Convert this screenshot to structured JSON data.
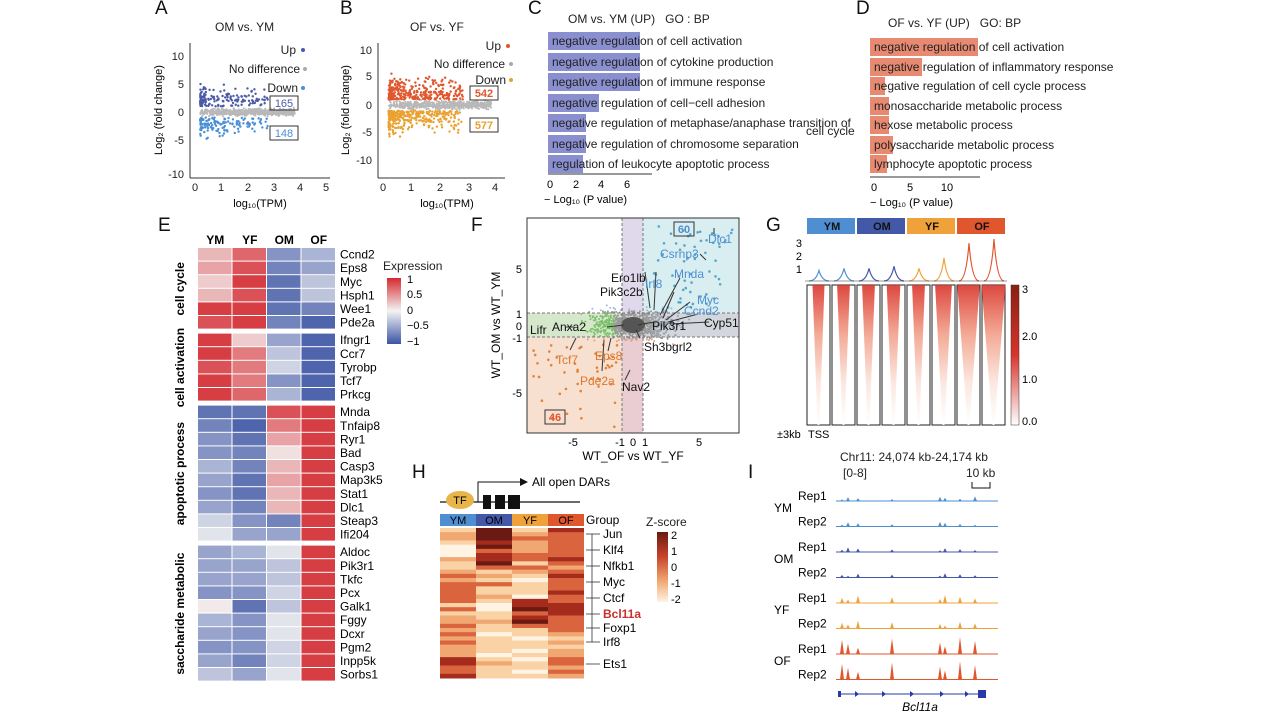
{
  "panel_letters": {
    "A": "A",
    "B": "B",
    "C": "C",
    "D": "D",
    "E": "E",
    "F": "F",
    "G": "G",
    "H": "H",
    "I": "I"
  },
  "panelA": {
    "title": "OM vs. YM",
    "ylabel": "Log₂ (fold change)",
    "xlabel": "log₁₀(TPM)",
    "legend": [
      "Up",
      "No difference",
      "Down"
    ],
    "up_count": "165",
    "down_count": "148",
    "yticks": [
      "10",
      "5",
      "0",
      "-5",
      "-10"
    ],
    "xticks": [
      "0",
      "1",
      "2",
      "3",
      "4",
      "5"
    ],
    "colors": {
      "up": "#4a5aa8",
      "down": "#4b8fd6",
      "none": "#b8b8b8"
    }
  },
  "panelB": {
    "title": "OF vs. YF",
    "ylabel": "Log₂ (fold change)",
    "xlabel": "log₁₀(TPM)",
    "legend": [
      "Up",
      "No difference",
      "Down"
    ],
    "up_count": "542",
    "down_count": "577",
    "yticks": [
      "10",
      "5",
      "0",
      "-5",
      "-10"
    ],
    "xticks": [
      "0",
      "1",
      "2",
      "3",
      "4"
    ],
    "colors": {
      "up": "#e0572e",
      "down": "#eaa130",
      "none": "#b8b8b8"
    }
  },
  "panelC": {
    "title": "OM vs. YM (UP)   GO : BP",
    "xlabel": "− Log₁₀ (P value)",
    "xticks": [
      "0",
      "2",
      "4",
      "6"
    ],
    "bar_color": "#8a8fd0",
    "terms": [
      {
        "label": "negative regulation of cell activation",
        "value": 6.8
      },
      {
        "label": "negative regulation of cytokine production",
        "value": 6.8
      },
      {
        "label": "negative regulation of immune response",
        "value": 6.8
      },
      {
        "label": "negative regulation of cell−cell adhesion",
        "value": 3.8
      },
      {
        "label": "negative regulation of metaphase/anaphase transition of",
        "label2": "cell cycle",
        "value": 2.8
      },
      {
        "label": "negative regulation of chromosome separation",
        "value": 2.8
      },
      {
        "label": "regulation of leukocyte apoptotic process",
        "value": 2.6
      }
    ]
  },
  "panelD": {
    "title": "OF vs. YF (UP)   GO: BP",
    "xlabel": "− Log₁₀ (P value)",
    "xticks": [
      "0",
      "5",
      "10"
    ],
    "bar_color": "#e88a72",
    "terms": [
      {
        "label": "negative regulation of cell activation",
        "value": 12.5
      },
      {
        "label": "negative regulation of inflammatory response",
        "value": 6.0
      },
      {
        "label": "negative regulation of cell cycle process",
        "value": 1.8
      },
      {
        "label": "monosaccharide metabolic process",
        "value": 2.2
      },
      {
        "label": "hexose metabolic process",
        "value": 2.2
      },
      {
        "label": "polysaccharide metabolic process",
        "value": 2.7
      },
      {
        "label": "lymphocyte apoptotic process",
        "value": 2.0
      }
    ]
  },
  "panelE": {
    "columns": [
      "YM",
      "YF",
      "OM",
      "OF"
    ],
    "legend_title": "Expression",
    "legend_ticks": [
      "1",
      "0.5",
      "0",
      "−0.5",
      "−1"
    ],
    "groups": [
      {
        "name": "cell cycle",
        "genes": [
          "Ccnd2",
          "Eps8",
          "Myc",
          "Hsph1",
          "Wee1",
          "Pde2a"
        ],
        "values": [
          [
            0.3,
            0.7,
            -0.6,
            -0.4
          ],
          [
            0.4,
            0.8,
            -0.7,
            -0.5
          ],
          [
            0.2,
            0.9,
            -0.8,
            -0.3
          ],
          [
            0.3,
            0.8,
            -0.8,
            -0.3
          ],
          [
            0.9,
            0.9,
            -0.8,
            -0.7
          ],
          [
            0.8,
            0.9,
            -0.7,
            -0.9
          ]
        ]
      },
      {
        "name": "cell activation",
        "genes": [
          "Ifngr1",
          "Ccr7",
          "Tyrobp",
          "Tcf7",
          "Prkcg"
        ],
        "values": [
          [
            0.9,
            0.2,
            -0.5,
            -0.9
          ],
          [
            0.9,
            0.6,
            -0.3,
            -0.9
          ],
          [
            0.8,
            0.6,
            -0.2,
            -0.9
          ],
          [
            0.9,
            0.6,
            -0.6,
            -0.9
          ],
          [
            0.9,
            0.7,
            -0.4,
            -0.9
          ]
        ]
      },
      {
        "name": "apoptotic process",
        "genes": [
          "Mnda",
          "Tnfaip8",
          "Ryr1",
          "Bad",
          "Casp3",
          "Map3k5",
          "Stat1",
          "Dlc1",
          "Steap3",
          "Ifi204"
        ],
        "values": [
          [
            -0.8,
            -0.8,
            0.8,
            0.9
          ],
          [
            -0.7,
            -0.9,
            0.6,
            0.9
          ],
          [
            -0.6,
            -0.8,
            0.4,
            0.9
          ],
          [
            -0.6,
            -0.7,
            0.1,
            0.9
          ],
          [
            -0.4,
            -0.7,
            0.3,
            0.9
          ],
          [
            -0.5,
            -0.8,
            0.4,
            0.9
          ],
          [
            -0.6,
            -0.8,
            0.3,
            0.9
          ],
          [
            -0.5,
            -0.7,
            0.3,
            0.9
          ],
          [
            -0.2,
            -0.6,
            -0.7,
            0.9
          ],
          [
            -0.1,
            -0.5,
            -0.5,
            0.9
          ]
        ]
      },
      {
        "name": "saccharide metabolic",
        "genes": [
          "Aldoc",
          "Pik3r1",
          "Tkfc",
          "Pcx",
          "Galk1",
          "Fggy",
          "Dcxr",
          "Pgm2",
          "Inpp5k",
          "Sorbs1"
        ],
        "values": [
          [
            -0.5,
            -0.4,
            -0.1,
            0.9
          ],
          [
            -0.5,
            -0.5,
            -0.3,
            0.9
          ],
          [
            -0.5,
            -0.5,
            -0.3,
            0.9
          ],
          [
            -0.6,
            -0.6,
            -0.2,
            0.9
          ],
          [
            0.05,
            -0.8,
            -0.3,
            0.9
          ],
          [
            -0.4,
            -0.6,
            -0.1,
            0.9
          ],
          [
            -0.5,
            -0.6,
            -0.1,
            0.9
          ],
          [
            -0.6,
            -0.6,
            -0.2,
            0.9
          ],
          [
            -0.5,
            -0.7,
            -0.2,
            0.9
          ],
          [
            -0.3,
            -0.5,
            -0.1,
            0.9
          ]
        ]
      }
    ]
  },
  "panelF": {
    "ylabel": "WT_OM vs WT_YM",
    "xlabel": "WT_OF vs WT_YF",
    "yticks": [
      "5",
      "1",
      "0",
      "-1",
      "-5"
    ],
    "xticks": [
      "-5",
      "-1",
      "0",
      "1",
      "5"
    ],
    "count_top": "60",
    "count_bottom": "46",
    "labels_black": [
      "Ero1lb",
      "Pik3c2b",
      "Anxa2",
      "Lifr",
      "Pik3r1",
      "Cyp51",
      "Sh3bgrl2",
      "Nav2"
    ],
    "labels_blue": [
      "Dlc1",
      "Csrnp3",
      "Mnda",
      "Irf8",
      "Myc",
      "Ccnd2"
    ],
    "labels_orange": [
      "Tcf7",
      "Eps8",
      "Pde2a"
    ]
  },
  "panelG": {
    "groups": [
      "YM",
      "OM",
      "YF",
      "OF"
    ],
    "group_colors": [
      "#4f8fd1",
      "#4458a8",
      "#f0a23a",
      "#e0562d"
    ],
    "yticks": [
      "3",
      "2",
      "1"
    ],
    "scale": [
      "3",
      "2.0",
      "1.0",
      "0.0"
    ],
    "xlabel_left": "±3kb",
    "xlabel_tss": "TSS"
  },
  "panelH": {
    "tf_label": "TF",
    "arrow_label": "All open DARs",
    "group_label": "Group",
    "groups": [
      "YM",
      "OM",
      "YF",
      "OF"
    ],
    "zscore_title": "Z-score",
    "zscore_ticks": [
      "2",
      "1",
      "0",
      "-1",
      "-2"
    ],
    "genes": [
      "Jun",
      "Klf4",
      "Nfkb1",
      "Myc",
      "Ctcf",
      "Bcl11a",
      "Foxp1",
      "Irf8",
      "Ets1"
    ],
    "highlight_gene": "Bcl11a"
  },
  "panelI": {
    "locus": "Chr11: 24,074 kb-24,174 kb",
    "range": "[0-8]",
    "scale": "10 kb",
    "tracks": [
      {
        "group": "YM",
        "rep": "Rep1",
        "color": "#4f8fd1"
      },
      {
        "group": "",
        "rep": "Rep2",
        "color": "#4f8fd1"
      },
      {
        "group": "OM",
        "rep": "Rep1",
        "color": "#4458a8"
      },
      {
        "group": "",
        "rep": "Rep2",
        "color": "#4458a8"
      },
      {
        "group": "YF",
        "rep": "Rep1",
        "color": "#f0a23a"
      },
      {
        "group": "",
        "rep": "Rep2",
        "color": "#f0a23a"
      },
      {
        "group": "OF",
        "rep": "Rep1",
        "color": "#e0562d"
      },
      {
        "group": "",
        "rep": "Rep2",
        "color": "#e0562d"
      }
    ],
    "gene": "Bcl11a"
  }
}
